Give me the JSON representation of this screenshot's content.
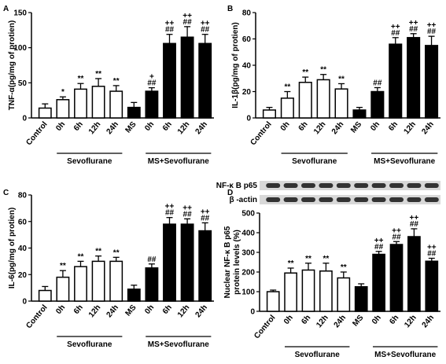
{
  "chart_data": [
    {
      "type": "bar",
      "panel": "A",
      "y_label": "TNF-α(pg/mg of protien)",
      "categories": [
        "Control",
        "0h",
        "6h",
        "12h",
        "24h",
        "MS",
        "0h",
        "6h",
        "12h",
        "24h"
      ],
      "values": [
        14,
        26,
        41,
        45,
        38,
        15,
        38,
        106,
        115,
        106
      ],
      "errors": [
        6,
        4,
        8,
        11,
        8,
        7,
        5,
        13,
        15,
        13
      ],
      "colors": [
        "#ffffff",
        "#ffffff",
        "#ffffff",
        "#ffffff",
        "#ffffff",
        "#000000",
        "#000000",
        "#000000",
        "#000000",
        "#000000"
      ],
      "annotations": [
        null,
        [
          "*"
        ],
        [
          "**"
        ],
        [
          "**"
        ],
        [
          "**"
        ],
        null,
        [
          "+",
          "##"
        ],
        [
          "++",
          "##"
        ],
        [
          "++",
          "##"
        ],
        [
          "++",
          "##"
        ]
      ],
      "groups": [
        "Sevoflurane",
        "MS+Sevoflurane"
      ],
      "ylim": [
        0,
        150
      ],
      "yticks": [
        0,
        50,
        100,
        150
      ]
    },
    {
      "type": "bar",
      "panel": "B",
      "y_label": "IL-1β(pg/mg of protien)",
      "categories": [
        "Control",
        "0h",
        "6h",
        "12h",
        "24h",
        "MS",
        "0h",
        "6h",
        "12h",
        "24h"
      ],
      "values": [
        6,
        15,
        27,
        29,
        22,
        6,
        20,
        56,
        61,
        55
      ],
      "errors": [
        2,
        5,
        4,
        4,
        4,
        2,
        3,
        5,
        3,
        7
      ],
      "colors": [
        "#ffffff",
        "#ffffff",
        "#ffffff",
        "#ffffff",
        "#ffffff",
        "#000000",
        "#000000",
        "#000000",
        "#000000",
        "#000000"
      ],
      "annotations": [
        null,
        [
          "**"
        ],
        [
          "**"
        ],
        [
          "**"
        ],
        [
          "**"
        ],
        null,
        [
          "##"
        ],
        [
          "++",
          "##"
        ],
        [
          "++",
          "##"
        ],
        [
          "++",
          "##"
        ]
      ],
      "groups": [
        "Sevoflurane",
        "MS+Sevoflurane"
      ],
      "ylim": [
        0,
        80
      ],
      "yticks": [
        0,
        20,
        40,
        60,
        80
      ]
    },
    {
      "type": "bar",
      "panel": "C",
      "y_label": "IL-6(pg/mg of protien)",
      "categories": [
        "Control",
        "0h",
        "6h",
        "12h",
        "24h",
        "MS",
        "0h",
        "6h",
        "12h",
        "24h"
      ],
      "values": [
        8,
        18,
        26,
        30,
        30,
        9,
        25,
        58,
        58,
        53
      ],
      "errors": [
        3,
        5,
        4,
        4,
        3,
        3,
        3,
        5,
        4,
        6
      ],
      "colors": [
        "#ffffff",
        "#ffffff",
        "#ffffff",
        "#ffffff",
        "#ffffff",
        "#000000",
        "#000000",
        "#000000",
        "#000000",
        "#000000"
      ],
      "annotations": [
        null,
        [
          "**"
        ],
        [
          "**"
        ],
        [
          "**"
        ],
        [
          "**"
        ],
        null,
        [
          "##"
        ],
        [
          "++",
          "##"
        ],
        [
          "++",
          "##"
        ],
        [
          "++",
          "##"
        ]
      ],
      "groups": [
        "Sevoflurane",
        "MS+Sevoflurane"
      ],
      "ylim": [
        0,
        80
      ],
      "yticks": [
        0,
        20,
        40,
        60,
        80
      ]
    },
    {
      "type": "bar",
      "panel": "D",
      "y_label": [
        "Nuclear NF-κ B p65",
        "protein levels (%)"
      ],
      "blot_labels": [
        "NF-κ B p65",
        "β -actin"
      ],
      "categories": [
        "Control",
        "0h",
        "6h",
        "12h",
        "24h",
        "MS",
        "0h",
        "6h",
        "12h",
        "24h"
      ],
      "values": [
        100,
        195,
        210,
        205,
        170,
        125,
        290,
        340,
        380,
        255
      ],
      "errors": [
        8,
        25,
        35,
        40,
        30,
        15,
        15,
        15,
        40,
        15
      ],
      "colors": [
        "#ffffff",
        "#ffffff",
        "#ffffff",
        "#ffffff",
        "#ffffff",
        "#000000",
        "#000000",
        "#000000",
        "#000000",
        "#000000"
      ],
      "annotations": [
        null,
        [
          "**"
        ],
        [
          "**"
        ],
        [
          "**"
        ],
        [
          "**"
        ],
        null,
        [
          "++",
          "##"
        ],
        [
          "++",
          "##"
        ],
        [
          "++",
          "##"
        ],
        [
          "++",
          "##"
        ]
      ],
      "groups": [
        "Sevoflurane",
        "MS+Sevoflurane"
      ],
      "ylim": [
        0,
        500
      ],
      "yticks": [
        0,
        100,
        200,
        300,
        400,
        500
      ]
    }
  ]
}
